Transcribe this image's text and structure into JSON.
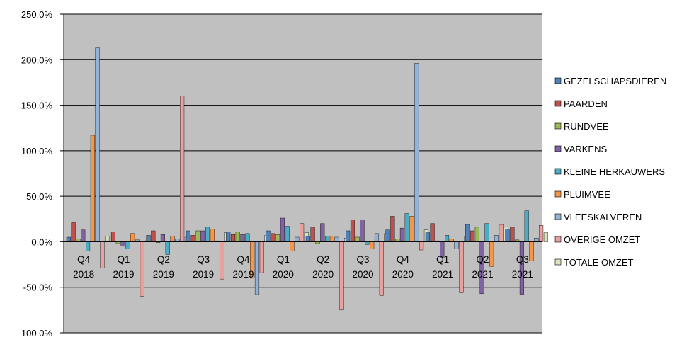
{
  "chart_data": {
    "type": "bar",
    "title": "",
    "xlabel": "",
    "ylabel": "",
    "ylim": [
      -100,
      250
    ],
    "y_ticks": [
      "250,0%",
      "200,0%",
      "150,0%",
      "100,0%",
      "50,0%",
      "0,0%",
      "-50,0%",
      "-100,0%"
    ],
    "y_tick_values": [
      250,
      200,
      150,
      100,
      50,
      0,
      -50,
      -100
    ],
    "grid": true,
    "legend_position": "right",
    "categories": [
      [
        "Q4",
        "2018"
      ],
      [
        "Q1",
        "2019"
      ],
      [
        "Q2",
        "2019"
      ],
      [
        "Q3",
        "2019"
      ],
      [
        "Q4",
        "2019"
      ],
      [
        "Q1",
        "2020"
      ],
      [
        "Q2",
        "2020"
      ],
      [
        "Q3",
        "2020"
      ],
      [
        "Q4",
        "2020"
      ],
      [
        "Q1",
        "2021"
      ],
      [
        "Q2",
        "2021"
      ],
      [
        "Q3",
        "2021"
      ]
    ],
    "series": [
      {
        "name": "GEZELSCHAPSDIEREN",
        "color": "#4F81BD",
        "values": [
          5,
          1,
          7,
          12,
          11,
          12,
          6,
          12,
          13,
          10,
          19,
          14
        ]
      },
      {
        "name": "PAARDEN",
        "color": "#C0504D",
        "values": [
          21,
          11,
          12,
          7,
          8,
          9,
          16,
          24,
          28,
          20,
          12,
          16
        ]
      },
      {
        "name": "RUNDVEE",
        "color": "#9BBB59",
        "values": [
          3,
          -2,
          -1,
          12,
          11,
          8,
          -2,
          5,
          3,
          1,
          16,
          2
        ]
      },
      {
        "name": "VARKENS",
        "color": "#8064A2",
        "values": [
          13,
          -5,
          8,
          12,
          8,
          26,
          20,
          24,
          15,
          -18,
          -57,
          -58
        ]
      },
      {
        "name": "KLEINE HERKAUWERS",
        "color": "#4BACC6",
        "values": [
          -10,
          -8,
          -14,
          16,
          9,
          17,
          6,
          -3,
          31,
          7,
          20,
          34
        ]
      },
      {
        "name": "PLUIMVEE",
        "color": "#F79646",
        "values": [
          117,
          9,
          6,
          14,
          -40,
          -10,
          6,
          -8,
          28,
          3,
          -27,
          -21
        ]
      },
      {
        "name": "VLEESKALVEREN",
        "color": "#95B3D7",
        "values": [
          213,
          2,
          3,
          1,
          -58,
          5,
          5,
          9,
          196,
          -8,
          7,
          4
        ]
      },
      {
        "name": "OVERIGE OMZET",
        "color": "#E6A1A0",
        "values": [
          -29,
          -60,
          160,
          -41,
          -34,
          20,
          -75,
          -59,
          -9,
          -56,
          19,
          18
        ]
      },
      {
        "name": "TOTALE OMZET",
        "color": "#D7E4BD",
        "values": [
          6,
          1,
          5,
          10,
          7,
          10,
          4,
          9,
          13,
          6,
          16,
          10
        ]
      }
    ]
  }
}
